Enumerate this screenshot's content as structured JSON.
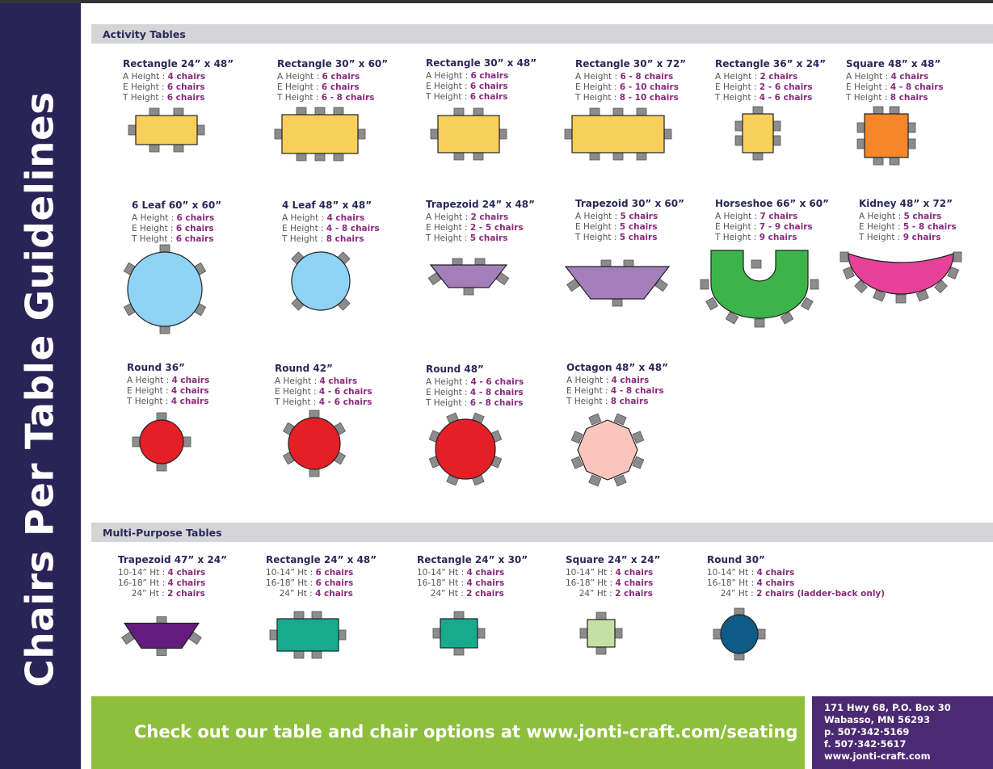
{
  "sidebar_title": "Chairs Per Table Guidelines",
  "sections": [
    {
      "title": "Activity Tables",
      "tables": [
        {
          "name": "Rectangle 24” x 48”",
          "lines": [
            [
              "A Height : ",
              "4 chairs"
            ],
            [
              "E Height : ",
              "6 chairs"
            ],
            [
              "T Height : ",
              "6 chairs"
            ]
          ],
          "shape": "rectangle",
          "color": "#f9cf5b"
        },
        {
          "name": "Rectangle 30” x 60”",
          "lines": [
            [
              "A Height : ",
              "6 chairs"
            ],
            [
              "E Height : ",
              "6 chairs"
            ],
            [
              "T Height : ",
              "6 - 8 chairs"
            ]
          ],
          "shape": "rectangle",
          "color": "#f9cf5b"
        },
        {
          "name": "Rectangle 30” x 48”",
          "lines": [
            [
              "A Height : ",
              "6 chairs"
            ],
            [
              "E Height : ",
              "6 chairs"
            ],
            [
              "T Height : ",
              "6 chairs"
            ]
          ],
          "shape": "rectangle",
          "color": "#f9cf5b"
        },
        {
          "name": "Rectangle 30” x 72”",
          "lines": [
            [
              "A Height : ",
              "6 - 8 chairs"
            ],
            [
              "E Height : ",
              "6 - 10 chairs"
            ],
            [
              "T Height : ",
              "8 - 10 chairs"
            ]
          ],
          "shape": "rectangle",
          "color": "#f9cf5b"
        },
        {
          "name": "Rectangle 36” x 24”",
          "lines": [
            [
              "A Height : ",
              "2 chairs"
            ],
            [
              "E Height : ",
              "2 - 6 chairs"
            ],
            [
              "T Height : ",
              "4 - 6 chairs"
            ]
          ],
          "shape": "rectangle",
          "color": "#f9cf5b"
        },
        {
          "name": "Square 48” x 48”",
          "lines": [
            [
              "A Height : ",
              "4 chairs"
            ],
            [
              "E Height : ",
              "4 - 8 chairs"
            ],
            [
              "T Height : ",
              "8 chairs"
            ]
          ],
          "shape": "square",
          "color": "#f5862a"
        },
        {
          "name": "6 Leaf 60” x 60”",
          "lines": [
            [
              "A Height : ",
              "6 chairs"
            ],
            [
              "E Height : ",
              "6 chairs"
            ],
            [
              "T Height : ",
              "6 chairs"
            ]
          ],
          "shape": "leaf",
          "color": "#8fd3f5"
        },
        {
          "name": "4 Leaf 48” x 48”",
          "lines": [
            [
              "A Height : ",
              "4 chairs"
            ],
            [
              "E Height : ",
              "4 - 8 chairs"
            ],
            [
              "T Height : ",
              "8 chairs"
            ]
          ],
          "shape": "leaf",
          "color": "#8fd3f5"
        },
        {
          "name": "Trapezoid 24” x 48”",
          "lines": [
            [
              "A Height : ",
              "2 chairs"
            ],
            [
              "E Height : ",
              "2 - 5 chairs"
            ],
            [
              "T Height : ",
              "5 chairs"
            ]
          ],
          "shape": "trapezoid",
          "color": "#a47ebb"
        },
        {
          "name": "Trapezoid 30” x 60”",
          "lines": [
            [
              "A Height : ",
              "5 chairs"
            ],
            [
              "E Height : ",
              "5 chairs"
            ],
            [
              "T Height : ",
              "5 chairs"
            ]
          ],
          "shape": "trapezoid",
          "color": "#a47ebb"
        },
        {
          "name": "Horseshoe 66” x 60”",
          "lines": [
            [
              "A Height : ",
              "7 chairs"
            ],
            [
              "E Height : ",
              "7 - 9 chairs"
            ],
            [
              "T Height : ",
              "9 chairs"
            ]
          ],
          "shape": "horseshoe",
          "color": "#3cb44a"
        },
        {
          "name": "Kidney 48” x 72”",
          "lines": [
            [
              "A Height : ",
              "5 chairs"
            ],
            [
              "E Height : ",
              "5 - 8 chairs"
            ],
            [
              "T Height : ",
              "9 chairs"
            ]
          ],
          "shape": "kidney",
          "color": "#e8419a"
        },
        {
          "name": "Round 36”",
          "lines": [
            [
              "A Height : ",
              "4 chairs"
            ],
            [
              "E Height : ",
              "4 chairs"
            ],
            [
              "T Height : ",
              "4 chairs"
            ]
          ],
          "shape": "round",
          "color": "#e41f26"
        },
        {
          "name": "Round 42”",
          "lines": [
            [
              "A Height : ",
              "4 chairs"
            ],
            [
              "E Height : ",
              "4 - 6 chairs"
            ],
            [
              "T Height : ",
              "4 - 6 chairs"
            ]
          ],
          "shape": "round",
          "color": "#e41f26"
        },
        {
          "name": "Round 48”",
          "lines": [
            [
              "A Height : ",
              "4 - 6 chairs"
            ],
            [
              "E Height : ",
              "4 - 8 chairs"
            ],
            [
              "T Height : ",
              "6 - 8 chairs"
            ]
          ],
          "shape": "round",
          "color": "#e41f26"
        },
        {
          "name": "Octagon 48” x 48”",
          "lines": [
            [
              "A Height : ",
              "4 chairs"
            ],
            [
              "E Height : ",
              "4 - 8 chairs"
            ],
            [
              "T Height : ",
              "8 chairs"
            ]
          ],
          "shape": "octagon",
          "color": "#f9c5bc"
        }
      ]
    },
    {
      "title": "Multi-Purpose Tables",
      "tables": [
        {
          "name": "Trapezoid 47” x 24”",
          "lines": [
            [
              "10-14” Ht : ",
              "4 chairs"
            ],
            [
              "16-18” Ht : ",
              "4 chairs"
            ],
            [
              "     24” Ht : ",
              "2 chairs"
            ]
          ],
          "shape": "trapezoid",
          "color": "#651a7d"
        },
        {
          "name": "Rectangle 24” x 48”",
          "lines": [
            [
              "10-14” Ht : ",
              "6 chairs"
            ],
            [
              "16-18” Ht : ",
              "6 chairs"
            ],
            [
              "     24” Ht : ",
              "4 chairs"
            ]
          ],
          "shape": "rectangle",
          "color": "#16ab8c"
        },
        {
          "name": "Rectangle 24” x 30”",
          "lines": [
            [
              "10-14” Ht : ",
              "4 chairs"
            ],
            [
              "16-18” Ht : ",
              "4 chairs"
            ],
            [
              "     24” Ht : ",
              "2 chairs"
            ]
          ],
          "shape": "rectangle",
          "color": "#16ab8c"
        },
        {
          "name": "Square 24” x 24”",
          "lines": [
            [
              "10-14” Ht : ",
              "4 chairs"
            ],
            [
              "16-18” Ht : ",
              "4 chairs"
            ],
            [
              "     24” Ht : ",
              "2 chairs"
            ]
          ],
          "shape": "square",
          "color": "#c5e0a5"
        },
        {
          "name": "Round 30”",
          "lines": [
            [
              "10-14” Ht : ",
              "4 chairs"
            ],
            [
              "16-18” Ht : ",
              "4 chairs"
            ],
            [
              "     24” Ht : ",
              "2 chairs (ladder-back only)"
            ]
          ],
          "shape": "round",
          "color": "#0f5b87"
        }
      ]
    }
  ],
  "footer": {
    "text": "Check out our table and chair options at www.jonti-craft.com/seating",
    "address": [
      "171 Hwy 68, P.O. Box 30",
      "Wabasso, MN 56293",
      "p. 507·342·5169",
      "f. 507·342·5617",
      "www.jonti-craft.com"
    ]
  }
}
